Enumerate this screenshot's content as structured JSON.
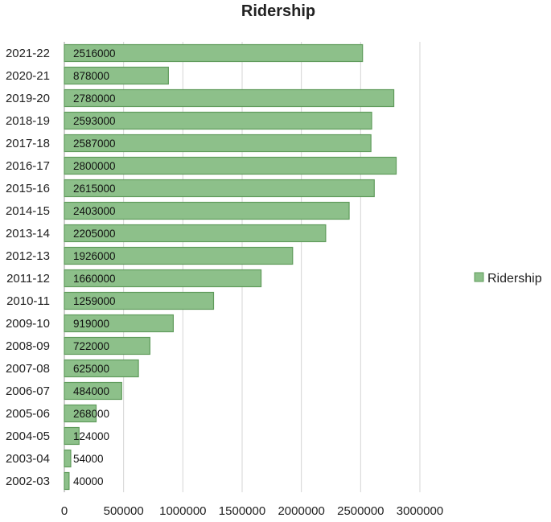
{
  "chart_data": {
    "type": "bar",
    "orientation": "horizontal",
    "title": "Ridership",
    "xlabel": "",
    "ylabel": "",
    "categories": [
      "2021-22",
      "2020-21",
      "2019-20",
      "2018-19",
      "2017-18",
      "2016-17",
      "2015-16",
      "2014-15",
      "2013-14",
      "2012-13",
      "2011-12",
      "2010-11",
      "2009-10",
      "2008-09",
      "2007-08",
      "2006-07",
      "2005-06",
      "2004-05",
      "2003-04",
      "2002-03"
    ],
    "series": [
      {
        "name": "Ridership",
        "color": "#8dc08a",
        "values": [
          2516000,
          878000,
          2780000,
          2593000,
          2587000,
          2800000,
          2615000,
          2403000,
          2205000,
          1926000,
          1660000,
          1259000,
          919000,
          722000,
          625000,
          484000,
          268000,
          124000,
          54000,
          40000
        ]
      }
    ],
    "xlim": [
      0,
      3000000
    ],
    "x_ticks": [
      0,
      500000,
      1000000,
      1500000,
      2000000,
      2500000,
      3000000
    ],
    "x_tick_labels": [
      "0",
      "500000",
      "1000000",
      "1500000",
      "2000000",
      "2500000",
      "3000000"
    ],
    "data_labels": [
      "2516000",
      "878000",
      "2780000",
      "2593000",
      "2587000",
      "2800000",
      "2615000",
      "2403000",
      "2205000",
      "1926000",
      "1660000",
      "1259000",
      "919000",
      "722000",
      "625000",
      "484000",
      "268000",
      "124000",
      "54000",
      "40000"
    ],
    "grid": true,
    "legend": {
      "position": "right",
      "entries": [
        "Ridership"
      ]
    }
  }
}
